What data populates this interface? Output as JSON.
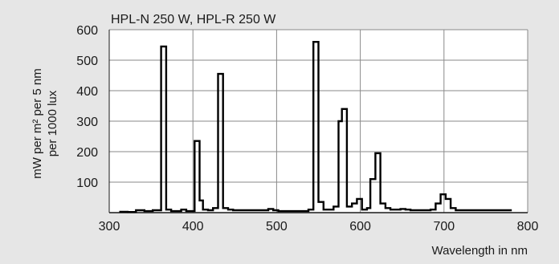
{
  "chart_data": {
    "type": "line",
    "title": "HPL-N 250 W, HPL-R 250 W",
    "xlabel": "Wavelength in nm",
    "ylabel": [
      "mW per m² per 5 nm",
      "per 1000 lux"
    ],
    "xlim": [
      300,
      800
    ],
    "ylim": [
      0,
      600
    ],
    "xticks": [
      300,
      400,
      500,
      600,
      700,
      800
    ],
    "yticks": [
      100,
      200,
      300,
      400,
      500,
      600
    ],
    "grid": true,
    "style": "stepped spectral distribution",
    "series": [
      {
        "x": [
          312,
          322,
          332,
          342,
          352,
          362,
          368,
          374,
          380,
          386,
          392,
          398,
          402,
          408,
          412,
          418,
          424,
          430,
          436,
          442,
          448,
          454,
          460,
          466,
          472,
          478,
          484,
          490,
          496,
          502,
          508,
          514,
          520,
          526,
          532,
          538,
          544,
          550,
          556,
          562,
          568,
          574,
          578,
          584,
          590,
          596,
          602,
          608,
          612,
          618,
          624,
          630,
          636,
          642,
          648,
          654,
          660,
          666,
          672,
          678,
          684,
          690,
          696,
          702,
          708,
          714,
          720,
          726,
          732,
          738,
          744,
          750,
          756,
          762,
          768,
          774,
          781
        ],
        "y": [
          3,
          2,
          8,
          5,
          8,
          545,
          10,
          5,
          5,
          10,
          5,
          5,
          235,
          40,
          10,
          8,
          15,
          455,
          15,
          10,
          8,
          8,
          8,
          8,
          8,
          8,
          8,
          12,
          8,
          5,
          5,
          5,
          5,
          5,
          5,
          10,
          560,
          35,
          10,
          10,
          20,
          300,
          340,
          20,
          30,
          45,
          10,
          15,
          110,
          195,
          30,
          15,
          10,
          10,
          12,
          10,
          8,
          8,
          8,
          8,
          10,
          30,
          60,
          45,
          15,
          8,
          8,
          8,
          8,
          8,
          8,
          8,
          8,
          8,
          8,
          8,
          8
        ]
      }
    ]
  }
}
